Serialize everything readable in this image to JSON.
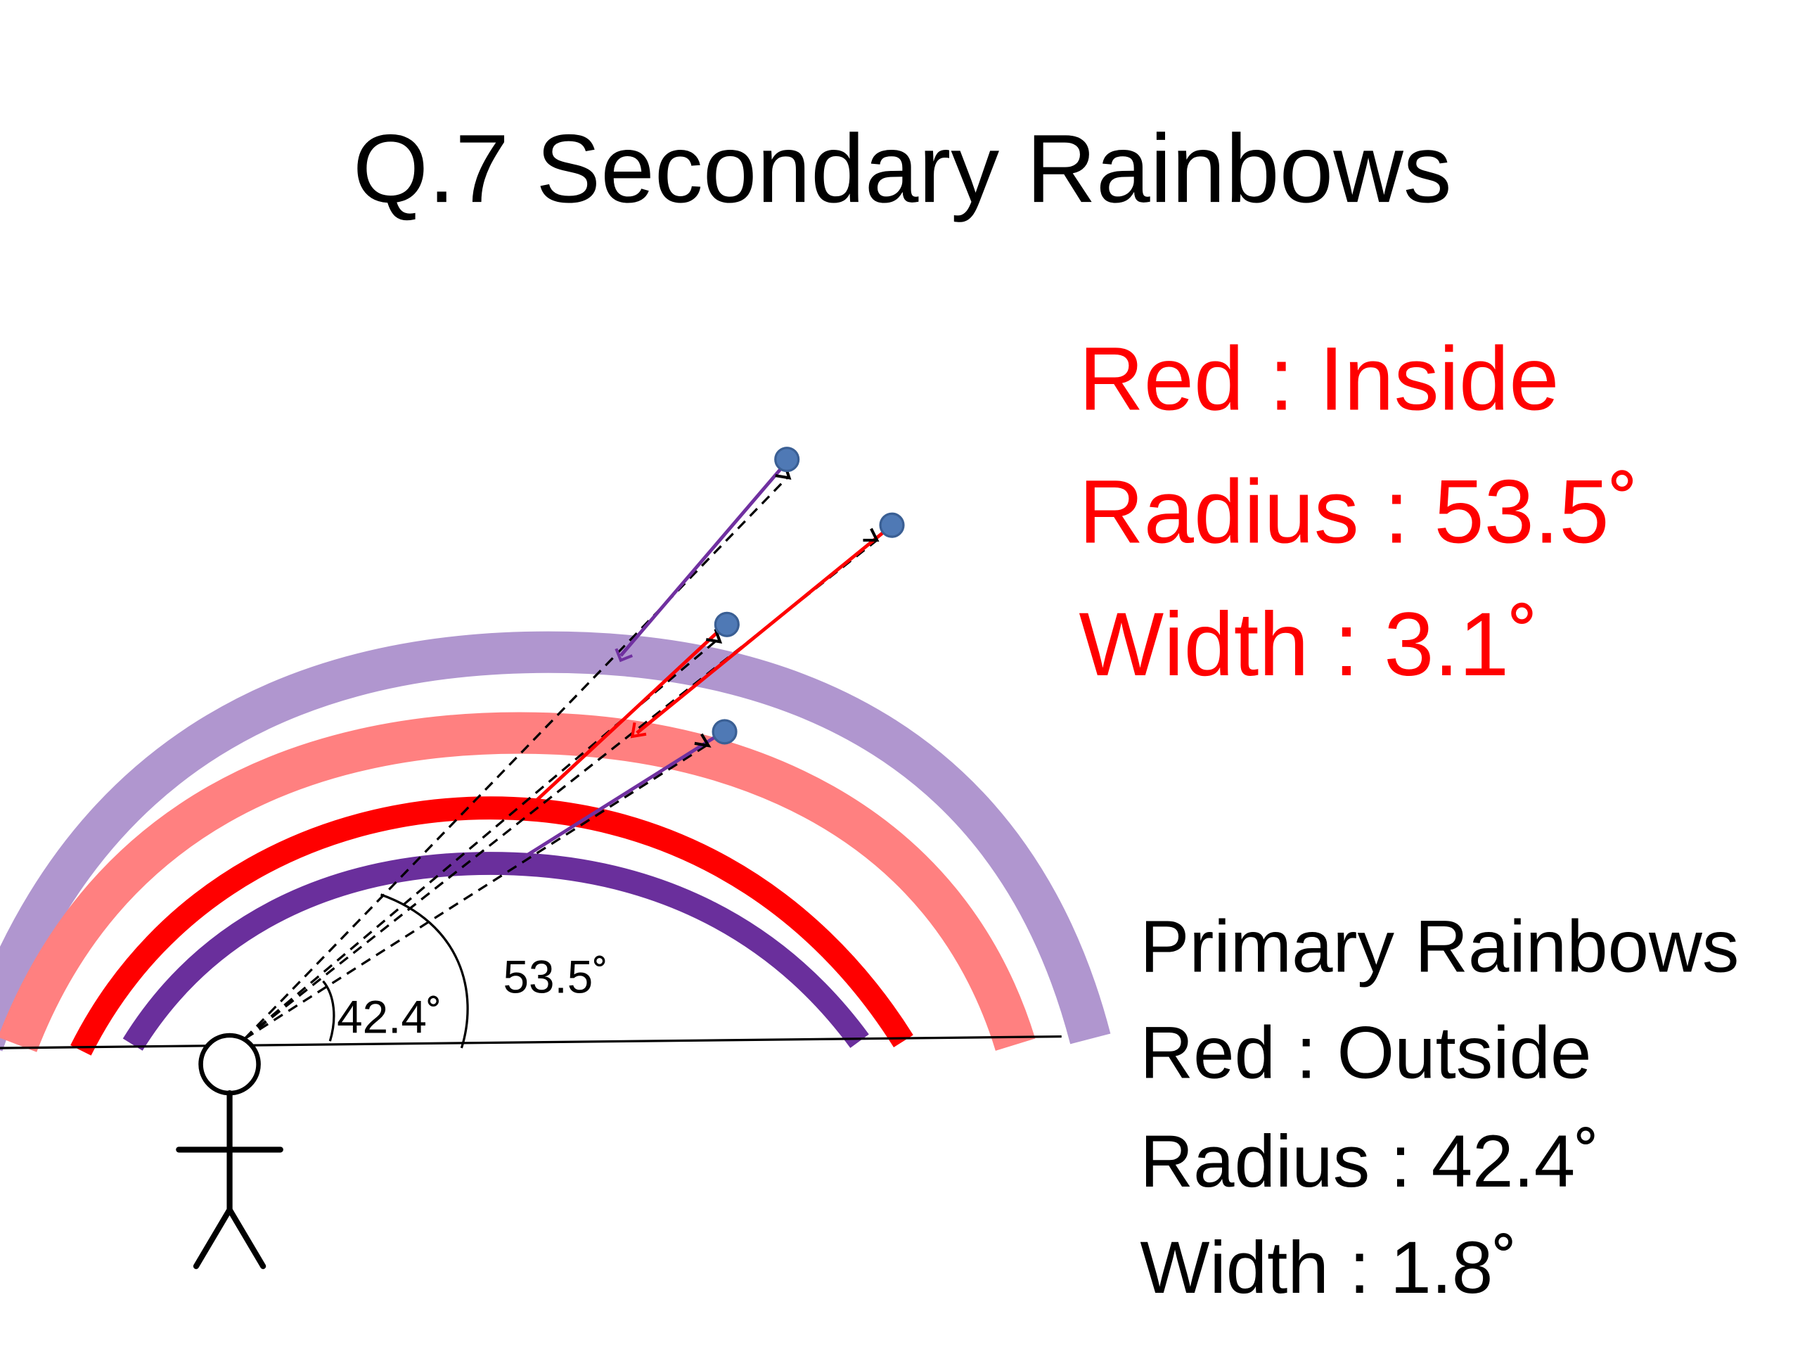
{
  "title": "Q.7 Secondary Rainbows",
  "secondary_info": {
    "line1": "Red : Inside",
    "line2": "Radius : 53.5˚",
    "line3": "Width : 3.1˚"
  },
  "primary_info": {
    "line1": "Primary Rainbows",
    "line2": "Red : Outside",
    "line3": "Radius : 42.4˚",
    "line4": "Width : 1.8˚"
  },
  "angle_labels": {
    "primary": "42.4˚",
    "secondary": "53.5˚"
  },
  "colors": {
    "secondary_text": "#ff0000",
    "primary_text": "#000000",
    "outer_violet_arc": "#b096cf",
    "outer_red_arc": "#ff8080",
    "inner_red_arc": "#ff0000",
    "inner_violet_arc": "#6a2f9c",
    "droplet": "#4f79b5",
    "ray_red": "#ff0000",
    "ray_violet": "#7030a0"
  }
}
